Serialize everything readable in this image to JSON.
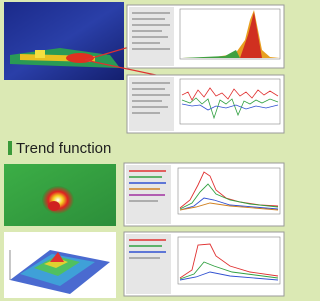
{
  "heading": "Trend function"
}
